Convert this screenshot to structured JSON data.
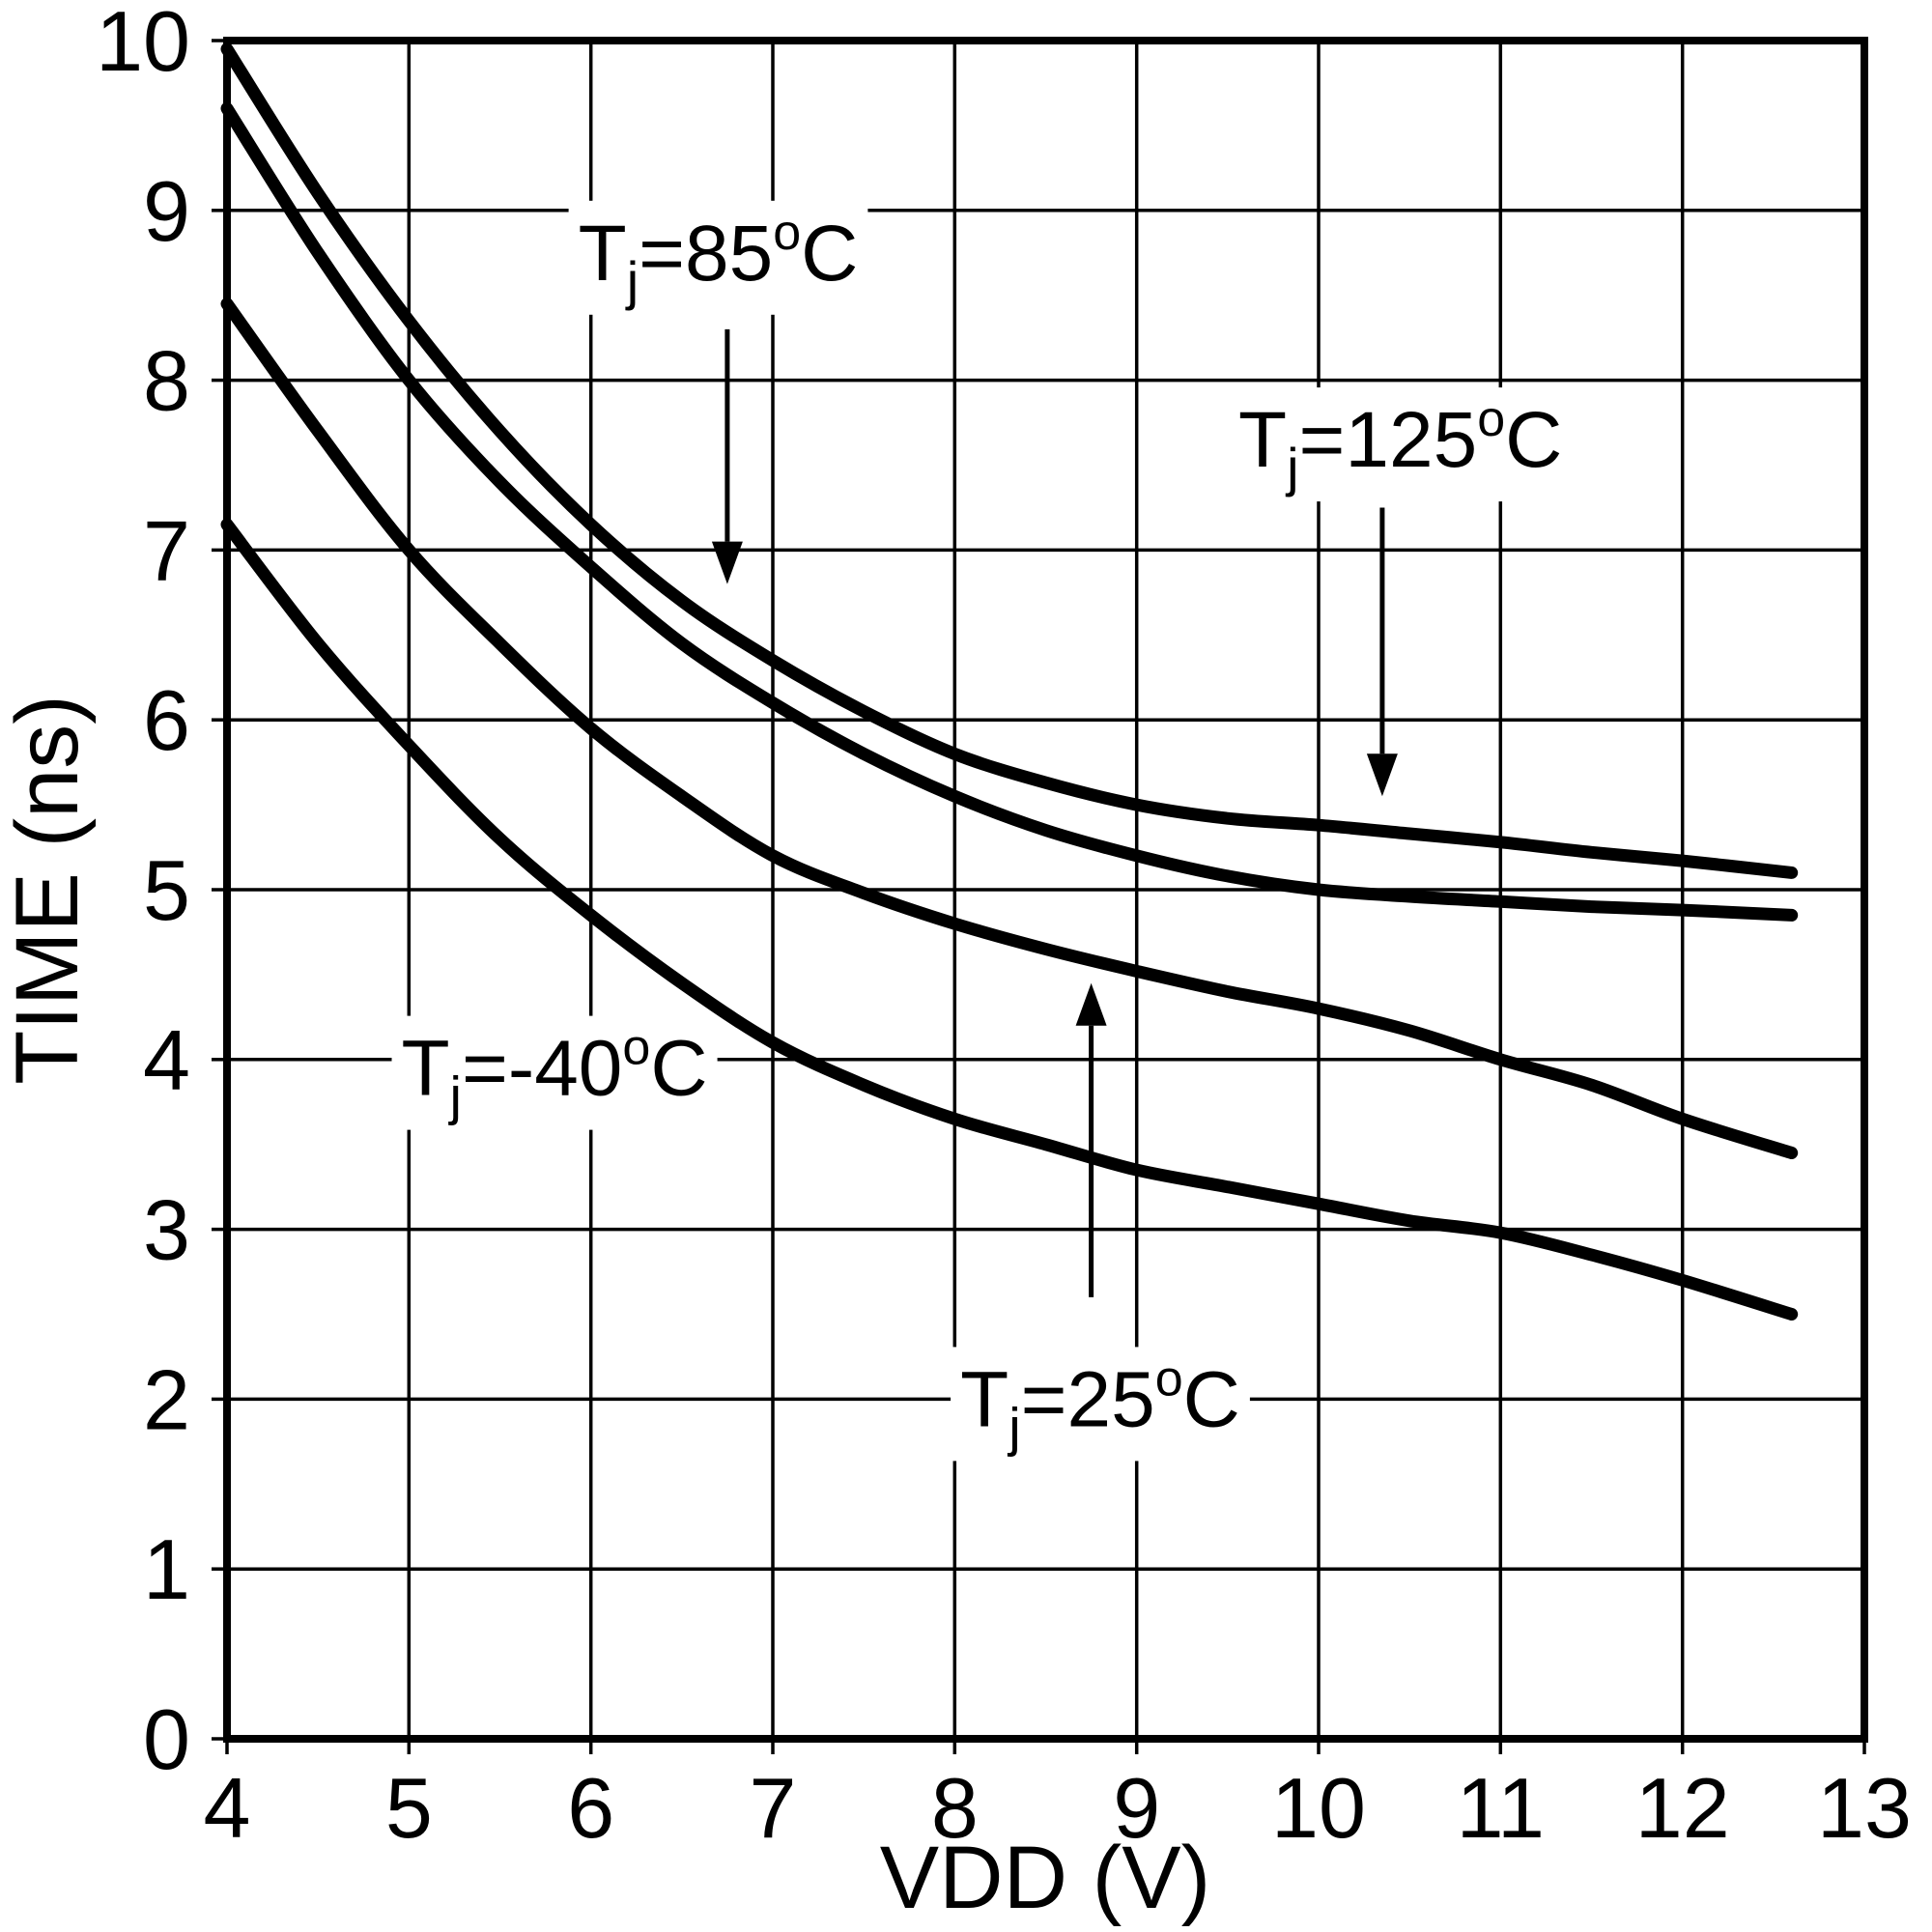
{
  "page": {
    "background": "#ffffff",
    "line_color": "#000000"
  },
  "chart_data": {
    "type": "line",
    "title": "",
    "xlabel": "VDD (V)",
    "ylabel": "TIME (ns)",
    "xlim": [
      4,
      13
    ],
    "ylim": [
      0,
      10
    ],
    "x_ticks": [
      4,
      5,
      6,
      7,
      8,
      9,
      10,
      11,
      12,
      13
    ],
    "y_ticks": [
      0,
      1,
      2,
      3,
      4,
      5,
      6,
      7,
      8,
      9,
      10
    ],
    "grid": true,
    "legend_position": "annotated-on-plot",
    "series": [
      {
        "name": "Tj=125°C",
        "x": [
          4,
          4.5,
          5,
          5.5,
          6,
          6.5,
          7,
          7.5,
          8,
          8.5,
          9,
          9.5,
          10,
          10.5,
          11,
          11.5,
          12,
          12.6
        ],
        "values": [
          9.95,
          9.1,
          8.35,
          7.7,
          7.15,
          6.7,
          6.35,
          6.05,
          5.8,
          5.63,
          5.5,
          5.42,
          5.38,
          5.33,
          5.28,
          5.22,
          5.17,
          5.1
        ]
      },
      {
        "name": "Tj=85°C",
        "x": [
          4,
          4.5,
          5,
          5.5,
          6,
          6.5,
          7,
          7.5,
          8,
          8.5,
          9,
          9.5,
          10,
          10.5,
          11,
          11.5,
          12,
          12.6
        ],
        "values": [
          9.6,
          8.75,
          8.0,
          7.4,
          6.9,
          6.45,
          6.1,
          5.8,
          5.55,
          5.35,
          5.2,
          5.08,
          5.0,
          4.96,
          4.93,
          4.9,
          4.88,
          4.85
        ]
      },
      {
        "name": "Tj=25°C",
        "x": [
          4,
          4.5,
          5,
          5.5,
          6,
          6.5,
          7,
          7.5,
          8,
          8.5,
          9,
          9.5,
          10,
          10.5,
          11,
          11.5,
          12,
          12.6
        ],
        "values": [
          8.45,
          7.7,
          7.0,
          6.45,
          5.95,
          5.55,
          5.2,
          4.98,
          4.8,
          4.65,
          4.52,
          4.4,
          4.3,
          4.17,
          4.0,
          3.85,
          3.65,
          3.45
        ]
      },
      {
        "name": "Tj=-40°C",
        "x": [
          4,
          4.5,
          5,
          5.5,
          6,
          6.5,
          7,
          7.5,
          8,
          8.5,
          9,
          9.5,
          10,
          10.5,
          11,
          11.5,
          12,
          12.6
        ],
        "values": [
          7.15,
          6.45,
          5.85,
          5.3,
          4.85,
          4.45,
          4.1,
          3.85,
          3.65,
          3.5,
          3.35,
          3.25,
          3.15,
          3.05,
          2.98,
          2.85,
          2.7,
          2.5
        ]
      }
    ],
    "annotations": [
      {
        "text": "Tj=85°C",
        "x": 6.7,
        "y": 8.75,
        "arrow_from": [
          6.75,
          8.3
        ],
        "arrow_to": [
          6.75,
          6.8
        ]
      },
      {
        "text": "Tj=125°C",
        "x": 10.45,
        "y": 7.65,
        "arrow_from": [
          10.35,
          7.25
        ],
        "arrow_to": [
          10.35,
          5.55
        ]
      },
      {
        "text": "Tj=25°C",
        "x": 8.8,
        "y": 2.0,
        "arrow_from": [
          8.75,
          2.6
        ],
        "arrow_to": [
          8.75,
          4.45
        ]
      },
      {
        "text": "Tj=-40°C",
        "x": 5.8,
        "y": 3.95
      }
    ]
  }
}
